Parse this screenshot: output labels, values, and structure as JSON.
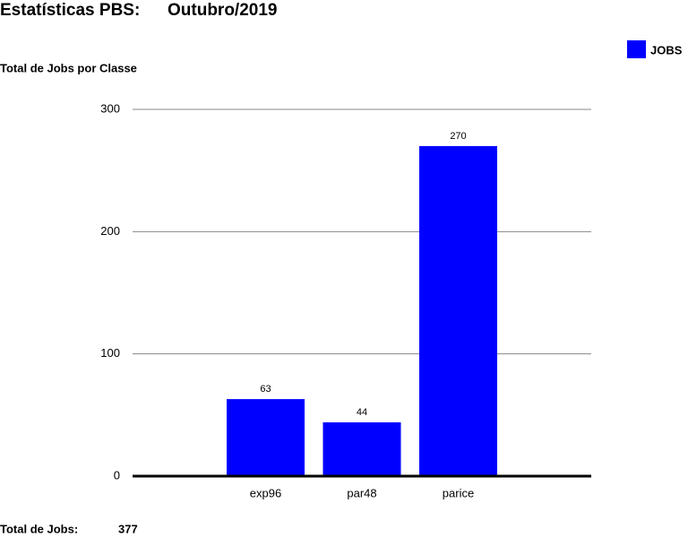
{
  "header": {
    "title": "Estatísticas PBS:",
    "period": "Outubro/2019"
  },
  "chart_data": {
    "type": "bar",
    "title": "Total de Jobs por Classe",
    "categories": [
      "exp96",
      "par48",
      "parice"
    ],
    "series": [
      {
        "name": "JOBS",
        "color": "#0000ff",
        "values": [
          63,
          44,
          270
        ]
      }
    ],
    "ylim": [
      0,
      300
    ],
    "yticks": [
      0,
      100,
      200,
      300
    ],
    "grid": true,
    "legend": "top-right"
  },
  "footer": {
    "label": "Total de Jobs:",
    "value": "377"
  }
}
